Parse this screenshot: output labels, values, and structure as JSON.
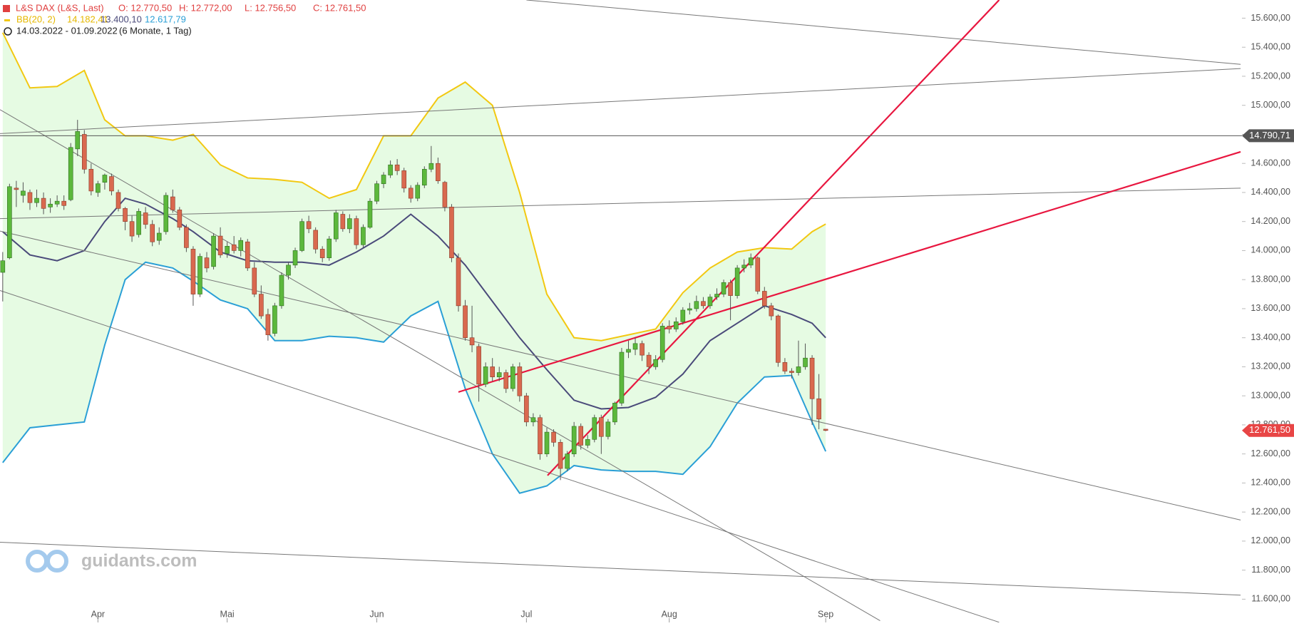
{
  "chart_data": {
    "type": "candlestick",
    "header": {
      "symbol": "L&S DAX (L&S, Last)",
      "ohlc_text": [
        "O: 12.770,50",
        "H: 12.772,00",
        "L: 12.756,50",
        "C: 12.761,50"
      ],
      "bb_label": "BB(20, 2)",
      "bb_values": [
        "14.182,41",
        "13.400,10",
        "12.617,79"
      ],
      "range": "14.03.2022 - 01.09.2022",
      "period": "(6 Monate, 1 Tag)"
    },
    "watermark": "guidants.com",
    "xlim": [
      -0.4,
      182.2
    ],
    "ylim": [
      11440,
      15725
    ],
    "xticks": [
      {
        "value": 14,
        "label": "Apr"
      },
      {
        "value": 33,
        "label": "Mai"
      },
      {
        "value": 55,
        "label": "Jun"
      },
      {
        "value": 77,
        "label": "Jul"
      },
      {
        "value": 98,
        "label": "Aug"
      },
      {
        "value": 121,
        "label": "Sep"
      }
    ],
    "yticks": [
      {
        "value": 11600,
        "label": "11.600,00"
      },
      {
        "value": 11800,
        "label": "11.800,00"
      },
      {
        "value": 12000,
        "label": "12.000,00"
      },
      {
        "value": 12200,
        "label": "12.200,00"
      },
      {
        "value": 12400,
        "label": "12.400,00"
      },
      {
        "value": 12600,
        "label": "12.600,00"
      },
      {
        "value": 12800,
        "label": "12.800,00"
      },
      {
        "value": 13000,
        "label": "13.000,00"
      },
      {
        "value": 13200,
        "label": "13.200,00"
      },
      {
        "value": 13400,
        "label": "13.400,00"
      },
      {
        "value": 13600,
        "label": "13.600,00"
      },
      {
        "value": 13800,
        "label": "13.800,00"
      },
      {
        "value": 14000,
        "label": "14.000,00"
      },
      {
        "value": 14200,
        "label": "14.200,00"
      },
      {
        "value": 14400,
        "label": "14.400,00"
      },
      {
        "value": 14600,
        "label": "14.600,00"
      },
      {
        "value": 14800,
        "label": "14.800,00"
      },
      {
        "value": 15000,
        "label": "15.000,00"
      },
      {
        "value": 15200,
        "label": "15.200,00"
      },
      {
        "value": 15400,
        "label": "15.400,00"
      },
      {
        "value": 15600,
        "label": "15.600,00"
      }
    ],
    "up_color": "#5cb83c",
    "down_color": "#d9694f",
    "ohlc": [
      [
        13850,
        13990,
        13650,
        13930
      ],
      [
        13950,
        14460,
        13940,
        14440
      ],
      [
        14430,
        14480,
        14300,
        14420
      ],
      [
        14380,
        14470,
        14330,
        14410
      ],
      [
        14400,
        14420,
        14280,
        14330
      ],
      [
        14330,
        14420,
        14300,
        14360
      ],
      [
        14360,
        14400,
        14250,
        14290
      ],
      [
        14300,
        14360,
        14260,
        14320
      ],
      [
        14320,
        14380,
        14300,
        14340
      ],
      [
        14340,
        14380,
        14280,
        14310
      ],
      [
        14350,
        14740,
        14340,
        14710
      ],
      [
        14700,
        14900,
        14650,
        14820
      ],
      [
        14800,
        14830,
        14530,
        14560
      ],
      [
        14560,
        14600,
        14380,
        14410
      ],
      [
        14400,
        14480,
        14370,
        14460
      ],
      [
        14470,
        14530,
        14420,
        14520
      ],
      [
        14510,
        14530,
        14380,
        14410
      ],
      [
        14400,
        14420,
        14270,
        14290
      ],
      [
        14290,
        14300,
        14140,
        14200
      ],
      [
        14200,
        14240,
        14060,
        14100
      ],
      [
        14110,
        14290,
        14090,
        14270
      ],
      [
        14260,
        14300,
        14150,
        14180
      ],
      [
        14180,
        14210,
        14030,
        14060
      ],
      [
        14070,
        14160,
        14040,
        14120
      ],
      [
        14130,
        14400,
        14110,
        14380
      ],
      [
        14370,
        14420,
        14260,
        14280
      ],
      [
        14280,
        14300,
        14140,
        14160
      ],
      [
        14160,
        14180,
        13990,
        14020
      ],
      [
        14010,
        14030,
        13620,
        13700
      ],
      [
        13700,
        13980,
        13680,
        13960
      ],
      [
        13950,
        13990,
        13850,
        13880
      ],
      [
        13890,
        14120,
        13870,
        14100
      ],
      [
        14100,
        14160,
        13950,
        13970
      ],
      [
        13980,
        14060,
        13950,
        14030
      ],
      [
        14040,
        14100,
        13980,
        14000
      ],
      [
        14000,
        14090,
        13960,
        14070
      ],
      [
        14060,
        14080,
        13860,
        13880
      ],
      [
        13880,
        13920,
        13680,
        13700
      ],
      [
        13700,
        13760,
        13530,
        13550
      ],
      [
        13560,
        13600,
        13380,
        13420
      ],
      [
        13430,
        13640,
        13410,
        13620
      ],
      [
        13620,
        13850,
        13600,
        13830
      ],
      [
        13830,
        13920,
        13800,
        13900
      ],
      [
        13900,
        14020,
        13880,
        14000
      ],
      [
        14000,
        14220,
        13990,
        14200
      ],
      [
        14200,
        14240,
        14120,
        14150
      ],
      [
        14140,
        14160,
        13980,
        14010
      ],
      [
        14010,
        14030,
        13920,
        13950
      ],
      [
        13950,
        14100,
        13930,
        14080
      ],
      [
        14080,
        14280,
        14060,
        14260
      ],
      [
        14250,
        14270,
        14130,
        14150
      ],
      [
        14150,
        14250,
        14120,
        14220
      ],
      [
        14220,
        14240,
        14010,
        14040
      ],
      [
        14040,
        14180,
        14020,
        14160
      ],
      [
        14160,
        14360,
        14150,
        14340
      ],
      [
        14340,
        14480,
        14320,
        14460
      ],
      [
        14460,
        14540,
        14430,
        14520
      ],
      [
        14520,
        14620,
        14500,
        14590
      ],
      [
        14590,
        14630,
        14520,
        14550
      ],
      [
        14550,
        14570,
        14400,
        14430
      ],
      [
        14430,
        14450,
        14330,
        14360
      ],
      [
        14360,
        14470,
        14340,
        14450
      ],
      [
        14450,
        14580,
        14430,
        14560
      ],
      [
        14560,
        14720,
        14540,
        14600
      ],
      [
        14600,
        14640,
        14460,
        14480
      ],
      [
        14470,
        14480,
        14270,
        14300
      ],
      [
        14300,
        14320,
        13920,
        13950
      ],
      [
        13950,
        13980,
        13580,
        13620
      ],
      [
        13620,
        13660,
        13380,
        13400
      ],
      [
        13400,
        13620,
        13300,
        13350
      ],
      [
        13340,
        13360,
        12960,
        13080
      ],
      [
        13080,
        13230,
        13060,
        13200
      ],
      [
        13200,
        13260,
        13100,
        13130
      ],
      [
        13130,
        13200,
        13100,
        13160
      ],
      [
        13160,
        13180,
        13020,
        13050
      ],
      [
        13050,
        13220,
        13030,
        13200
      ],
      [
        13200,
        13230,
        12960,
        13000
      ],
      [
        13000,
        13020,
        12790,
        12820
      ],
      [
        12820,
        12880,
        12790,
        12850
      ],
      [
        12850,
        12870,
        12560,
        12600
      ],
      [
        12600,
        12780,
        12580,
        12750
      ],
      [
        12750,
        12770,
        12650,
        12680
      ],
      [
        12680,
        12700,
        12420,
        12500
      ],
      [
        12500,
        12620,
        12480,
        12600
      ],
      [
        12600,
        12820,
        12580,
        12790
      ],
      [
        12790,
        12810,
        12630,
        12660
      ],
      [
        12660,
        12730,
        12640,
        12700
      ],
      [
        12700,
        12870,
        12680,
        12850
      ],
      [
        12850,
        12870,
        12600,
        12720
      ],
      [
        12720,
        12840,
        12700,
        12820
      ],
      [
        12820,
        12960,
        12800,
        12950
      ],
      [
        12950,
        13330,
        12930,
        13300
      ],
      [
        13300,
        13380,
        13260,
        13320
      ],
      [
        13320,
        13400,
        13280,
        13360
      ],
      [
        13360,
        13380,
        13240,
        13280
      ],
      [
        13280,
        13300,
        13150,
        13200
      ],
      [
        13200,
        13280,
        13180,
        13250
      ],
      [
        13250,
        13500,
        13230,
        13480
      ],
      [
        13480,
        13520,
        13430,
        13460
      ],
      [
        13460,
        13540,
        13440,
        13510
      ],
      [
        13510,
        13610,
        13490,
        13590
      ],
      [
        13590,
        13640,
        13560,
        13600
      ],
      [
        13600,
        13690,
        13580,
        13650
      ],
      [
        13650,
        13680,
        13600,
        13620
      ],
      [
        13620,
        13700,
        13600,
        13680
      ],
      [
        13680,
        13740,
        13660,
        13700
      ],
      [
        13700,
        13800,
        13680,
        13780
      ],
      [
        13780,
        13800,
        13520,
        13690
      ],
      [
        13690,
        13900,
        13670,
        13880
      ],
      [
        13880,
        13940,
        13850,
        13900
      ],
      [
        13900,
        13980,
        13880,
        13950
      ],
      [
        13950,
        13960,
        13700,
        13720
      ],
      [
        13720,
        13750,
        13600,
        13620
      ],
      [
        13620,
        13640,
        13520,
        13550
      ],
      [
        13550,
        13560,
        13200,
        13230
      ],
      [
        13230,
        13260,
        13150,
        13170
      ],
      [
        13170,
        13190,
        13120,
        13160
      ],
      [
        13160,
        13380,
        13140,
        13200
      ],
      [
        13200,
        13360,
        13180,
        13260
      ],
      [
        13260,
        13280,
        12800,
        12980
      ],
      [
        12980,
        13150,
        12770,
        12840
      ],
      [
        12770.5,
        12772,
        12756.5,
        12761.5
      ]
    ],
    "bands": {
      "fill": "#e6fbe3",
      "x": [
        0,
        4,
        8,
        12,
        15,
        18,
        21,
        25,
        28,
        32,
        36,
        40,
        44,
        48,
        52,
        56,
        60,
        64,
        68,
        72,
        76,
        80,
        84,
        88,
        92,
        96,
        100,
        104,
        108,
        112,
        116,
        119,
        121
      ],
      "upper": {
        "color": "#f2c811",
        "values": [
          15500,
          15120,
          15130,
          15240,
          14900,
          14790,
          14790,
          14760,
          14800,
          14590,
          14500,
          14490,
          14470,
          14360,
          14420,
          14790,
          14790,
          15050,
          15160,
          15000,
          14400,
          13700,
          13400,
          13380,
          13420,
          13460,
          13710,
          13880,
          13990,
          14020,
          14010,
          14130,
          14182.41
        ]
      },
      "middle": {
        "color": "#4a4a7a",
        "values": [
          14130,
          13970,
          13930,
          14000,
          14200,
          14360,
          14320,
          14220,
          14130,
          13990,
          13930,
          13920,
          13920,
          13900,
          13990,
          14100,
          14250,
          14100,
          13900,
          13650,
          13400,
          13180,
          12970,
          12910,
          12920,
          12990,
          13150,
          13380,
          13500,
          13620,
          13560,
          13500,
          13400.1
        ]
      },
      "lower": {
        "color": "#2a9fd6",
        "values": [
          12540,
          12780,
          12800,
          12820,
          13350,
          13800,
          13920,
          13880,
          13790,
          13660,
          13600,
          13380,
          13380,
          13410,
          13400,
          13370,
          13550,
          13650,
          13050,
          12600,
          12330,
          12380,
          12520,
          12490,
          12480,
          12480,
          12460,
          12650,
          12950,
          13130,
          13140,
          12820,
          12617.79
        ]
      }
    },
    "trendlines": [
      {
        "color": "#777777",
        "points": [
          [
            77,
            15725
          ],
          [
            182,
            15282
          ]
        ]
      },
      {
        "color": "#777777",
        "points": [
          [
            -0.4,
            14805
          ],
          [
            182,
            15253
          ]
        ]
      },
      {
        "color": "#777777",
        "points": [
          [
            -0.4,
            14220
          ],
          [
            182,
            14430
          ]
        ]
      },
      {
        "color": "#777777",
        "points": [
          [
            -0.4,
            14970
          ],
          [
            129,
            11452
          ]
        ]
      },
      {
        "color": "#777777",
        "points": [
          [
            -0.4,
            14134
          ],
          [
            182,
            12145
          ]
        ]
      },
      {
        "color": "#777777",
        "points": [
          [
            -0.4,
            13725
          ],
          [
            146.5,
            11441
          ]
        ]
      },
      {
        "color": "#777777",
        "points": [
          [
            -0.4,
            11992
          ],
          [
            182,
            11628
          ]
        ]
      },
      {
        "color": "#e8163f",
        "points": [
          [
            80.1,
            12452
          ],
          [
            146.5,
            15725
          ]
        ]
      },
      {
        "color": "#e8163f",
        "points": [
          [
            67,
            13026
          ],
          [
            182,
            14680
          ]
        ]
      }
    ],
    "hline": {
      "value": 14790.71,
      "label": "14.790,71",
      "color": "#555555"
    },
    "last_price": {
      "value": 12761.5,
      "label": "12.761,50",
      "color": "#e84545"
    }
  }
}
